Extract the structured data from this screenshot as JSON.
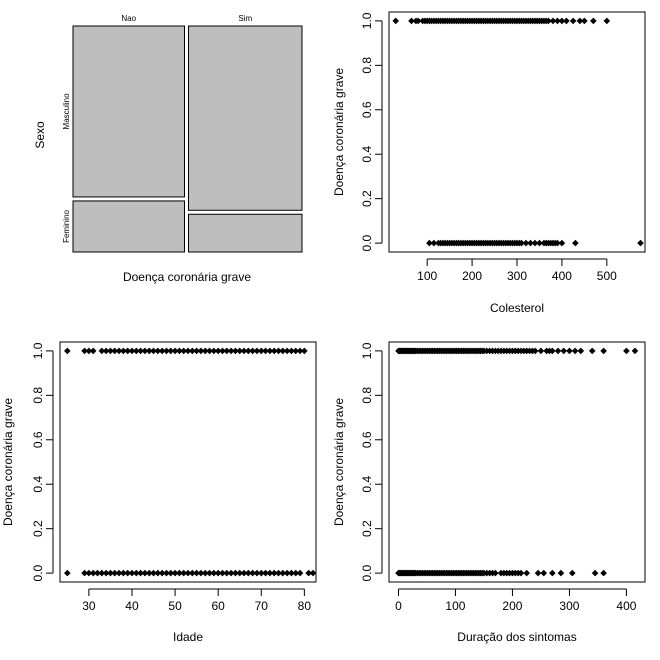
{
  "chart_data": [
    {
      "type": "mosaic",
      "xlabel": "Doença coronária grave",
      "ylabel": "Sexo",
      "columns": [
        "Nao",
        "Sim"
      ],
      "rows": [
        "Masculino",
        "Feminino"
      ],
      "column_proportions": [
        0.4955,
        0.5045
      ],
      "row_proportions_within_column": [
        [
          0.77,
          0.23
        ],
        [
          0.83,
          0.17
        ]
      ]
    },
    {
      "type": "scatter",
      "xlabel": "Colesterol",
      "ylabel": "Doença coronária grave",
      "xlim": [
        15,
        585
      ],
      "ylim": [
        -0.04,
        1.04
      ],
      "xticks": [
        100,
        200,
        300,
        400,
        500
      ],
      "yticks": [
        0.0,
        0.2,
        0.4,
        0.6,
        0.8,
        1.0
      ],
      "ytick_labels": [
        "0.0",
        "0.2",
        "0.4",
        "0.6",
        "0.8",
        "1.0"
      ],
      "series": [
        {
          "y": 1,
          "x": [
            30,
            65,
            75,
            80,
            90,
            95,
            100,
            105,
            110,
            115,
            120,
            125,
            130,
            135,
            140,
            145,
            150,
            155,
            160,
            165,
            170,
            175,
            180,
            185,
            190,
            195,
            200,
            205,
            210,
            215,
            220,
            225,
            230,
            235,
            240,
            245,
            250,
            255,
            260,
            265,
            270,
            275,
            280,
            285,
            290,
            295,
            300,
            305,
            310,
            315,
            320,
            325,
            330,
            335,
            340,
            345,
            350,
            355,
            360,
            365,
            370,
            380,
            390,
            400,
            410,
            425,
            440,
            450,
            470,
            500
          ]
        },
        {
          "y": 0,
          "x": [
            105,
            115,
            125,
            130,
            135,
            140,
            145,
            150,
            155,
            160,
            165,
            170,
            175,
            180,
            185,
            190,
            195,
            200,
            205,
            210,
            215,
            220,
            225,
            230,
            235,
            240,
            245,
            250,
            255,
            260,
            265,
            270,
            275,
            280,
            285,
            290,
            295,
            300,
            305,
            310,
            320,
            330,
            340,
            350,
            360,
            365,
            370,
            375,
            380,
            385,
            390,
            400,
            430,
            575
          ]
        }
      ]
    },
    {
      "type": "scatter",
      "xlabel": "Idade",
      "ylabel": "Doença coronária grave",
      "xlim": [
        23.3,
        82.7
      ],
      "ylim": [
        -0.04,
        1.04
      ],
      "xticks": [
        30,
        40,
        50,
        60,
        70,
        80
      ],
      "yticks": [
        0.0,
        0.2,
        0.4,
        0.6,
        0.8,
        1.0
      ],
      "ytick_labels": [
        "0.0",
        "0.2",
        "0.4",
        "0.6",
        "0.8",
        "1.0"
      ],
      "series": [
        {
          "y": 1,
          "x": [
            25,
            29,
            30,
            31,
            33,
            34,
            35,
            36,
            37,
            38,
            39,
            40,
            41,
            42,
            43,
            44,
            45,
            46,
            47,
            48,
            49,
            50,
            51,
            52,
            53,
            54,
            55,
            56,
            57,
            58,
            59,
            60,
            61,
            62,
            63,
            64,
            65,
            66,
            67,
            68,
            69,
            70,
            71,
            72,
            73,
            74,
            75,
            76,
            77,
            78,
            79,
            80
          ]
        },
        {
          "y": 0,
          "x": [
            25,
            29,
            30,
            31,
            32,
            33,
            34,
            35,
            36,
            37,
            38,
            39,
            40,
            41,
            42,
            43,
            44,
            45,
            46,
            47,
            48,
            49,
            50,
            51,
            52,
            53,
            54,
            55,
            56,
            57,
            58,
            59,
            60,
            61,
            62,
            63,
            64,
            65,
            66,
            67,
            68,
            69,
            70,
            71,
            72,
            73,
            74,
            75,
            76,
            77,
            78,
            79,
            81,
            82
          ]
        }
      ]
    },
    {
      "type": "scatter",
      "xlabel": "Duração dos sintomas",
      "ylabel": "Doença coronária grave",
      "xlim": [
        -16.6,
        432.6
      ],
      "ylim": [
        -0.04,
        1.04
      ],
      "xticks": [
        0,
        100,
        200,
        300,
        400
      ],
      "yticks": [
        0.0,
        0.2,
        0.4,
        0.6,
        0.8,
        1.0
      ],
      "ytick_labels": [
        "0.0",
        "0.2",
        "0.4",
        "0.6",
        "0.8",
        "1.0"
      ],
      "series": [
        {
          "y": 1,
          "x": [
            0,
            2,
            4,
            6,
            8,
            10,
            12,
            14,
            16,
            18,
            20,
            22,
            24,
            26,
            28,
            30,
            33,
            36,
            39,
            42,
            45,
            48,
            51,
            54,
            57,
            60,
            63,
            66,
            69,
            72,
            75,
            78,
            81,
            84,
            87,
            90,
            93,
            96,
            99,
            102,
            105,
            108,
            111,
            114,
            117,
            120,
            123,
            126,
            129,
            132,
            135,
            138,
            141,
            144,
            147,
            150,
            155,
            160,
            165,
            170,
            175,
            180,
            185,
            190,
            195,
            200,
            205,
            210,
            215,
            220,
            225,
            230,
            235,
            240,
            250,
            260,
            265,
            270,
            280,
            290,
            300,
            310,
            320,
            340,
            360,
            400,
            415
          ]
        },
        {
          "y": 0,
          "x": [
            0,
            2,
            4,
            6,
            8,
            10,
            12,
            14,
            16,
            18,
            20,
            22,
            24,
            26,
            28,
            30,
            33,
            36,
            39,
            42,
            45,
            48,
            51,
            54,
            57,
            60,
            63,
            66,
            69,
            72,
            75,
            78,
            81,
            84,
            87,
            90,
            93,
            96,
            99,
            102,
            105,
            108,
            111,
            114,
            117,
            120,
            123,
            126,
            129,
            132,
            135,
            138,
            141,
            144,
            147,
            150,
            155,
            160,
            165,
            170,
            180,
            185,
            190,
            195,
            200,
            205,
            210,
            215,
            225,
            245,
            255,
            270,
            285,
            305,
            345,
            360
          ]
        }
      ]
    }
  ]
}
